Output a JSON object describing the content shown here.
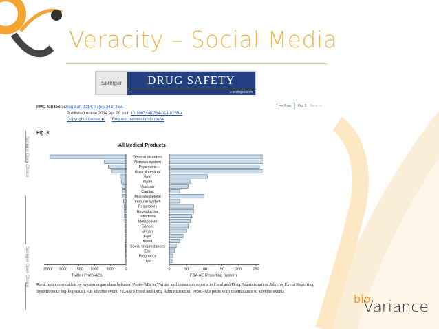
{
  "slide_title": "Veracity – Social Media",
  "banner": {
    "publisher": "Springer",
    "journal": "Drug Safety",
    "url": "▸ springer.com"
  },
  "pmc": {
    "label": "PMC full text:",
    "citation": "Drug Saf. 2014; 37(5): 343–350.",
    "published": "Published online 2014 Apr 29. doi:",
    "doi": "10.1007/s40264-014-0155-x",
    "copyright": "Copyright/License ►",
    "permission": "Request permission to reuse"
  },
  "pager": {
    "prev": "<< Prev",
    "current": "Fig. 3",
    "next": "Next >>"
  },
  "figure_label": "Fig. 3",
  "side_label": "Springer Open Choice",
  "colors": {
    "bar": "#c9dbe8",
    "bar_stroke": "#4a6d8c",
    "title": "#f0b24a",
    "accent": "#f0a030"
  },
  "chart_data": {
    "type": "bar",
    "title": "All Medical Products",
    "categories": [
      "General disorders",
      "Nervous system",
      "Psychiatric",
      "Gastrointestinal",
      "Skin",
      "Injury",
      "Vascular",
      "Cardiac",
      "Musculoskeletal",
      "Immune system",
      "Respiratory",
      "Reproductive",
      "Infections",
      "Metabolism",
      "Cancer",
      "Urinary",
      "Eye",
      "Blood",
      "Social circumstances",
      "Ear",
      "Pregnancy",
      "Liver"
    ],
    "series": [
      {
        "name": "Twitter Proto-AEs",
        "values": [
          2430,
          690,
          560,
          460,
          190,
          150,
          120,
          110,
          90,
          80,
          60,
          55,
          50,
          45,
          40,
          35,
          30,
          25,
          20,
          15,
          10,
          5
        ],
        "xlim": [
          0,
          2500
        ],
        "xticks": [
          "2500",
          "2000",
          "1500",
          "1000",
          "500",
          "0"
        ]
      },
      {
        "name": "FDA AE Reporting System",
        "values": [
          310,
          290,
          260,
          275,
          110,
          60,
          55,
          30,
          100,
          30,
          70,
          70,
          65,
          60,
          55,
          50,
          40,
          30,
          20,
          15,
          10,
          8
        ],
        "xlim": [
          0,
          250
        ],
        "xticks": [
          "0",
          "50",
          "100",
          "150",
          "200",
          "250"
        ]
      }
    ],
    "xlabel_left": "Twitter Proto-AEs",
    "xlabel_right": "FDA AE Reporting System"
  },
  "caption_parts": {
    "p1": "Rank order correlation by system organ class between Proto-AEs in Twitter and consumer reports in Food and Drug Administration Adverse Event Reporting System (note log-log scale). ",
    "ae": "AE",
    "p2": " adverse event, ",
    "fda": "FDA",
    "p3": " US Food and Drug Administration, ",
    "proto": "Proto-AEs",
    "p4": " posts with resemblance to adverse events"
  },
  "logo": {
    "top": "bio",
    "main": "Variance"
  }
}
